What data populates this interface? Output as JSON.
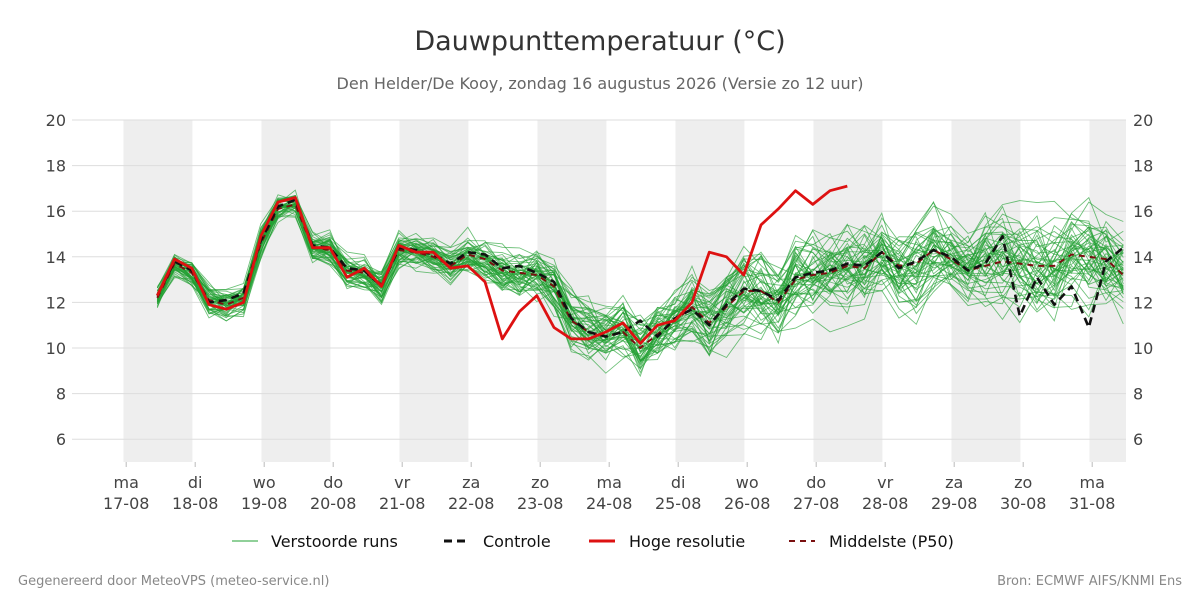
{
  "chart_data": {
    "type": "line",
    "title": "Dauwpunttemperatuur (°C)",
    "subtitle": "Den Helder/De Kooy, zondag 16 augustus 2026 (Versie zo 12 uur)",
    "ylim": [
      5,
      20
    ],
    "yticks": [
      6,
      8,
      10,
      12,
      14,
      16,
      18,
      20
    ],
    "grid": true,
    "legend_position": "bottom",
    "x_ticks": [
      {
        "day": "ma",
        "date": "17-08"
      },
      {
        "day": "di",
        "date": "18-08"
      },
      {
        "day": "wo",
        "date": "19-08"
      },
      {
        "day": "do",
        "date": "20-08"
      },
      {
        "day": "vr",
        "date": "21-08"
      },
      {
        "day": "za",
        "date": "22-08"
      },
      {
        "day": "zo",
        "date": "23-08"
      },
      {
        "day": "ma",
        "date": "24-08"
      },
      {
        "day": "di",
        "date": "25-08"
      },
      {
        "day": "wo",
        "date": "26-08"
      },
      {
        "day": "do",
        "date": "27-08"
      },
      {
        "day": "vr",
        "date": "28-08"
      },
      {
        "day": "za",
        "date": "29-08"
      },
      {
        "day": "zo",
        "date": "30-08"
      },
      {
        "day": "ma",
        "date": "31-08"
      }
    ],
    "series": [
      {
        "name": "Controle",
        "color": "#111111",
        "style": "dashed",
        "x_start": "2026-08-16 18:00",
        "step_hours": 6,
        "values": [
          12.3,
          13.8,
          13.4,
          12.0,
          12.1,
          12.4,
          14.7,
          16.2,
          16.5,
          14.5,
          14.4,
          13.5,
          13.4,
          12.7,
          14.4,
          14.3,
          14.1,
          13.7,
          14.2,
          14.1,
          13.5,
          13.6,
          13.3,
          12.9,
          11.3,
          10.7,
          10.5,
          10.7,
          11.2,
          10.5,
          11.3,
          11.7,
          11.0,
          11.9,
          12.6,
          12.5,
          12.1,
          13.1,
          13.3,
          13.4,
          13.7,
          13.6,
          14.2,
          13.5,
          13.8,
          14.3,
          14.0,
          13.4,
          13.7,
          14.9,
          11.4,
          13.1,
          11.9,
          12.7,
          10.9,
          13.8,
          14.4,
          14.4,
          14.1,
          14.3,
          12.7
        ]
      },
      {
        "name": "Hoge resolutie",
        "color": "#dd1111",
        "style": "solid",
        "x_start": "2026-08-16 18:00",
        "step_hours": 6,
        "values": [
          12.3,
          13.9,
          13.5,
          11.9,
          11.7,
          12.0,
          14.9,
          16.4,
          16.6,
          14.4,
          14.4,
          13.1,
          13.5,
          12.7,
          14.5,
          14.2,
          14.2,
          13.5,
          13.6,
          12.9,
          10.4,
          11.6,
          12.3,
          10.9,
          10.4,
          10.4,
          10.7,
          11.1,
          10.2,
          11.0,
          11.2,
          12.0,
          14.2,
          14.0,
          13.2,
          15.4,
          16.1,
          16.9,
          16.3,
          16.9,
          17.1
        ]
      },
      {
        "name": "Middelste (P50)",
        "color": "#7a1010",
        "style": "dashed",
        "x_start": "2026-08-16 18:00",
        "step_hours": 6,
        "values": [
          12.2,
          13.7,
          13.3,
          12.1,
          11.9,
          12.2,
          14.6,
          16.1,
          16.3,
          14.4,
          14.3,
          13.4,
          13.3,
          12.8,
          14.3,
          14.2,
          14.0,
          13.6,
          14.1,
          13.9,
          13.4,
          13.3,
          13.2,
          12.7,
          11.2,
          10.7,
          10.5,
          10.7,
          10.0,
          10.6,
          11.2,
          11.8,
          11.1,
          11.8,
          12.5,
          12.5,
          12.0,
          13.0,
          13.2,
          13.3,
          13.6,
          13.5,
          14.2,
          13.6,
          13.7,
          14.3,
          13.9,
          13.4,
          13.6,
          13.8,
          13.7,
          13.6,
          13.6,
          14.1,
          14.0,
          13.9,
          13.2,
          13.5,
          13.9,
          13.2,
          12.6
        ]
      }
    ],
    "ensemble": {
      "name": "Verstoorde runs",
      "color": "#22a033",
      "members": 50,
      "x_start": "2026-08-16 18:00",
      "step_hours": 6,
      "spread": [
        0.6,
        0.6,
        0.7,
        0.8,
        0.8,
        0.8,
        0.8,
        0.7,
        0.7,
        0.8,
        0.9,
        0.9,
        0.9,
        1.0,
        0.9,
        0.9,
        0.9,
        1.0,
        1.0,
        1.1,
        1.2,
        1.3,
        1.4,
        1.5,
        1.5,
        1.6,
        1.6,
        1.6,
        1.7,
        1.7,
        1.8,
        1.8,
        1.9,
        1.9,
        2.0,
        2.0,
        2.0,
        2.1,
        2.1,
        2.1,
        2.2,
        2.2,
        2.2,
        2.2,
        2.3,
        2.3,
        2.3,
        2.3,
        2.3,
        2.4,
        2.4,
        2.4,
        2.4,
        2.4,
        2.5,
        2.5,
        2.5,
        2.5,
        2.5,
        2.5,
        2.5
      ]
    },
    "legend": [
      "Verstoorde runs",
      "Controle",
      "Hoge resolutie",
      "Middelste (P50)"
    ]
  },
  "footer": {
    "left": "Gegenereerd door MeteoVPS (meteo-service.nl)",
    "right": "Bron: ECMWF AIFS/KNMI Ens"
  }
}
